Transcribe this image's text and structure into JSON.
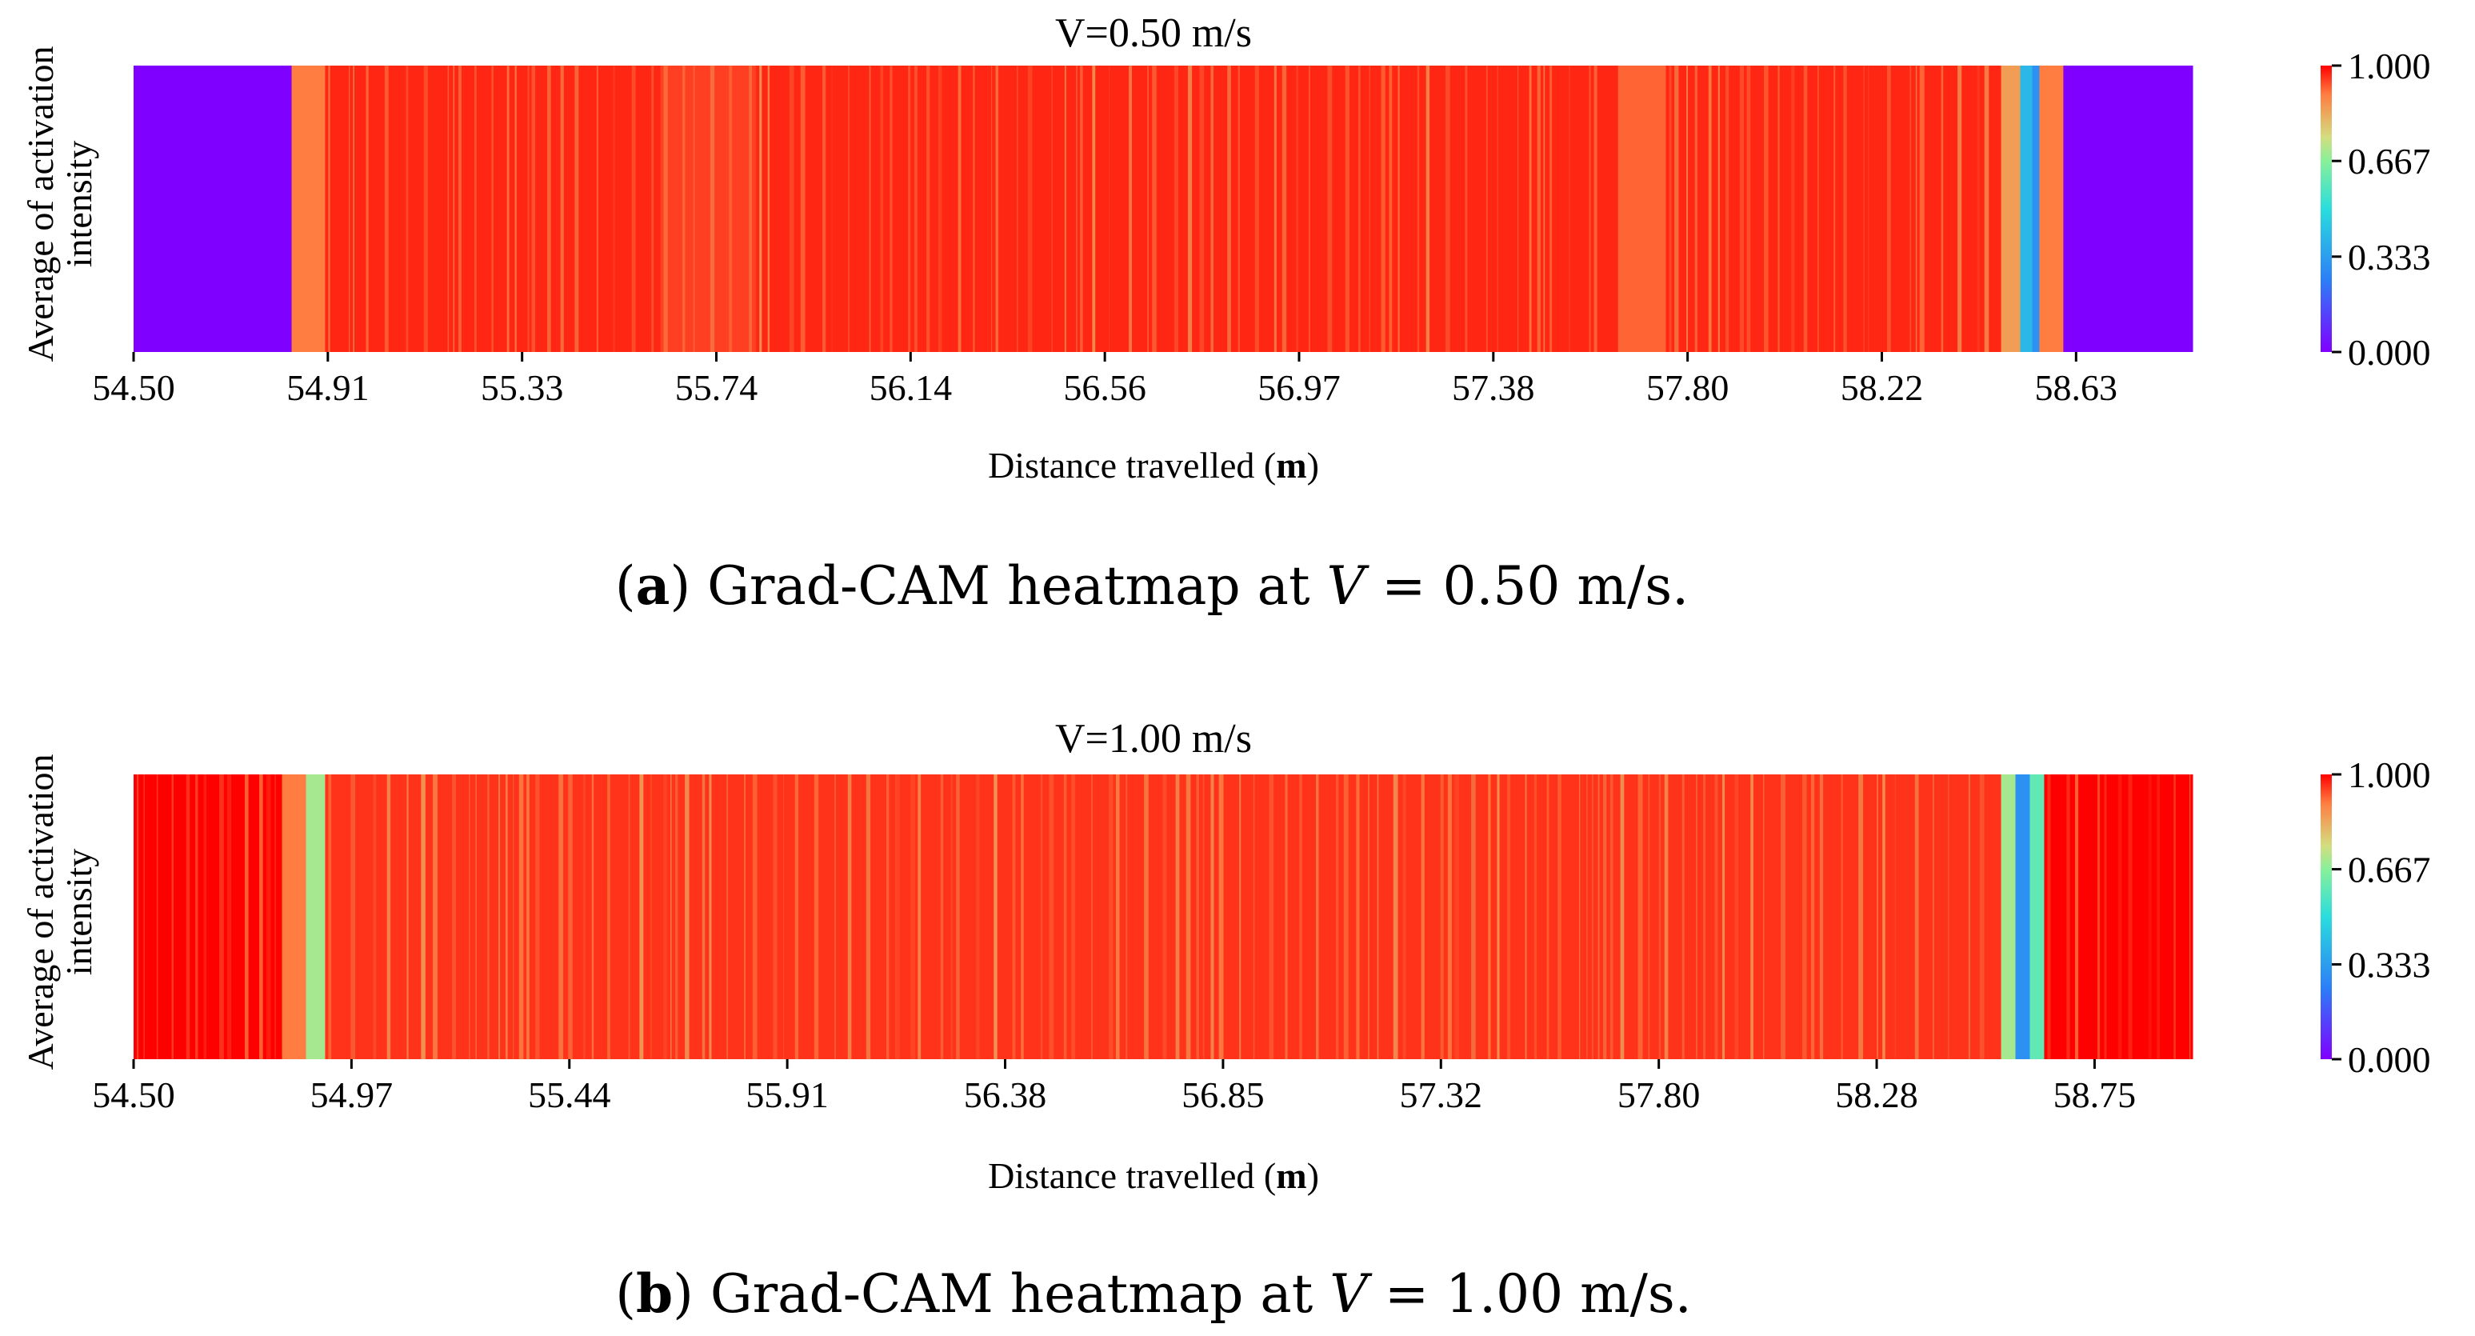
{
  "chart_data": [
    {
      "type": "heatmap",
      "title": "V=0.50 m/s",
      "xlabel_prefix": "Distance travelled (",
      "xlabel_unit": "m",
      "xlabel_suffix": ")",
      "ylabel_line1": "Average of activation",
      "ylabel_line2": "intensity",
      "x_range": [
        54.5,
        58.8
      ],
      "x_ticks": [
        "54.50",
        "54.91",
        "55.33",
        "55.74",
        "56.14",
        "56.56",
        "56.97",
        "57.38",
        "57.80",
        "58.22",
        "58.63"
      ],
      "colorbar_ticks": [
        "0.000",
        "0.333",
        "0.667",
        "1.000"
      ],
      "colorbar_range": [
        0.0,
        1.0
      ],
      "colormap": "rainbow",
      "regions": [
        {
          "from": 54.5,
          "to": 54.83,
          "value": 0.0
        },
        {
          "from": 54.83,
          "to": 54.9,
          "value": 0.9
        },
        {
          "from": 54.9,
          "to": 55.6,
          "value": 0.97
        },
        {
          "from": 55.6,
          "to": 55.8,
          "value": 0.95
        },
        {
          "from": 55.8,
          "to": 57.6,
          "value": 0.97
        },
        {
          "from": 57.6,
          "to": 57.7,
          "value": 0.92
        },
        {
          "from": 57.7,
          "to": 58.4,
          "value": 0.97
        },
        {
          "from": 58.4,
          "to": 58.44,
          "value": 0.85
        },
        {
          "from": 58.44,
          "to": 58.465,
          "value": 0.4
        },
        {
          "from": 58.465,
          "to": 58.48,
          "value": 0.3
        },
        {
          "from": 58.48,
          "to": 58.53,
          "value": 0.9
        },
        {
          "from": 58.53,
          "to": 58.8,
          "value": 0.0
        }
      ],
      "caption_label": "a",
      "caption_text": " Grad-CAM heatmap at ",
      "caption_var": "V",
      "caption_eq": " = 0.50 m/s."
    },
    {
      "type": "heatmap",
      "title": "V=1.00 m/s",
      "xlabel_prefix": "Distance travelled (",
      "xlabel_unit": "m",
      "xlabel_suffix": ")",
      "ylabel_line1": "Average of activation",
      "ylabel_line2": "intensity",
      "x_range": [
        54.5,
        58.8
      ],
      "x_ticks": [
        "54.50",
        "54.97",
        "55.44",
        "55.91",
        "56.38",
        "56.85",
        "57.32",
        "57.80",
        "58.28",
        "58.75"
      ],
      "colorbar_ticks": [
        "0.000",
        "0.333",
        "0.667",
        "1.000"
      ],
      "colorbar_range": [
        0.0,
        1.0
      ],
      "colormap": "rainbow",
      "regions": [
        {
          "from": 54.5,
          "to": 54.81,
          "value": 1.0
        },
        {
          "from": 54.81,
          "to": 54.86,
          "value": 0.9
        },
        {
          "from": 54.86,
          "to": 54.9,
          "value": 0.7
        },
        {
          "from": 54.9,
          "to": 58.4,
          "value": 0.96
        },
        {
          "from": 58.4,
          "to": 58.43,
          "value": 0.7
        },
        {
          "from": 58.43,
          "to": 58.46,
          "value": 0.3
        },
        {
          "from": 58.46,
          "to": 58.49,
          "value": 0.6
        },
        {
          "from": 58.49,
          "to": 58.8,
          "value": 1.0
        }
      ],
      "caption_label": "b",
      "caption_text": " Grad-CAM heatmap at ",
      "caption_var": "V",
      "caption_eq": " = 1.00 m/s."
    }
  ]
}
